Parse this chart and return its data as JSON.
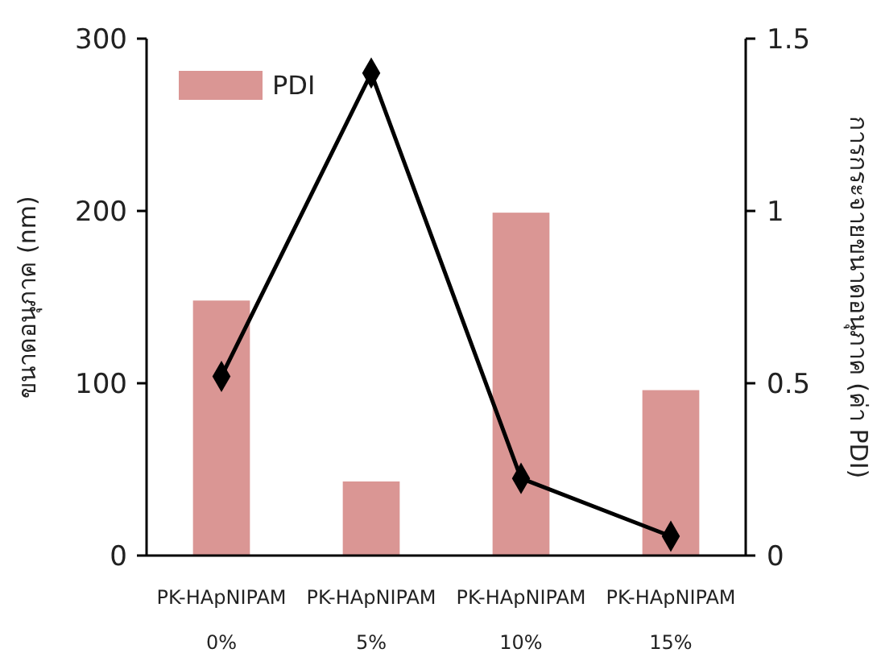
{
  "chart_data": {
    "type": "bar",
    "categories": [
      "PK-HApNIPAM\n0%",
      "PK-HApNIPAM\n5%",
      "PK-HApNIPAM\n10%",
      "PK-HApNIPAM\n15%"
    ],
    "series": [
      {
        "name": "PDI",
        "color": "#da9694",
        "values": [
          148,
          43,
          199,
          96
        ]
      },
      {
        "type": "line",
        "axis": "y2",
        "color": "#000000",
        "marker": "diamond",
        "values": [
          0.52,
          1.4,
          0.224,
          0.056
        ]
      }
    ],
    "ylabel": "ขนาดอนุภาค (nm)",
    "y2label": "การกระจายขนาดอนุภาค (ค่า PDI)",
    "ylim": [
      0,
      300
    ],
    "yticks": [
      0,
      100,
      200,
      300
    ],
    "y2lim": [
      0,
      1.5
    ],
    "y2ticks": [
      0,
      0.5,
      1,
      1.5
    ],
    "legend": "top left",
    "grid": false
  }
}
